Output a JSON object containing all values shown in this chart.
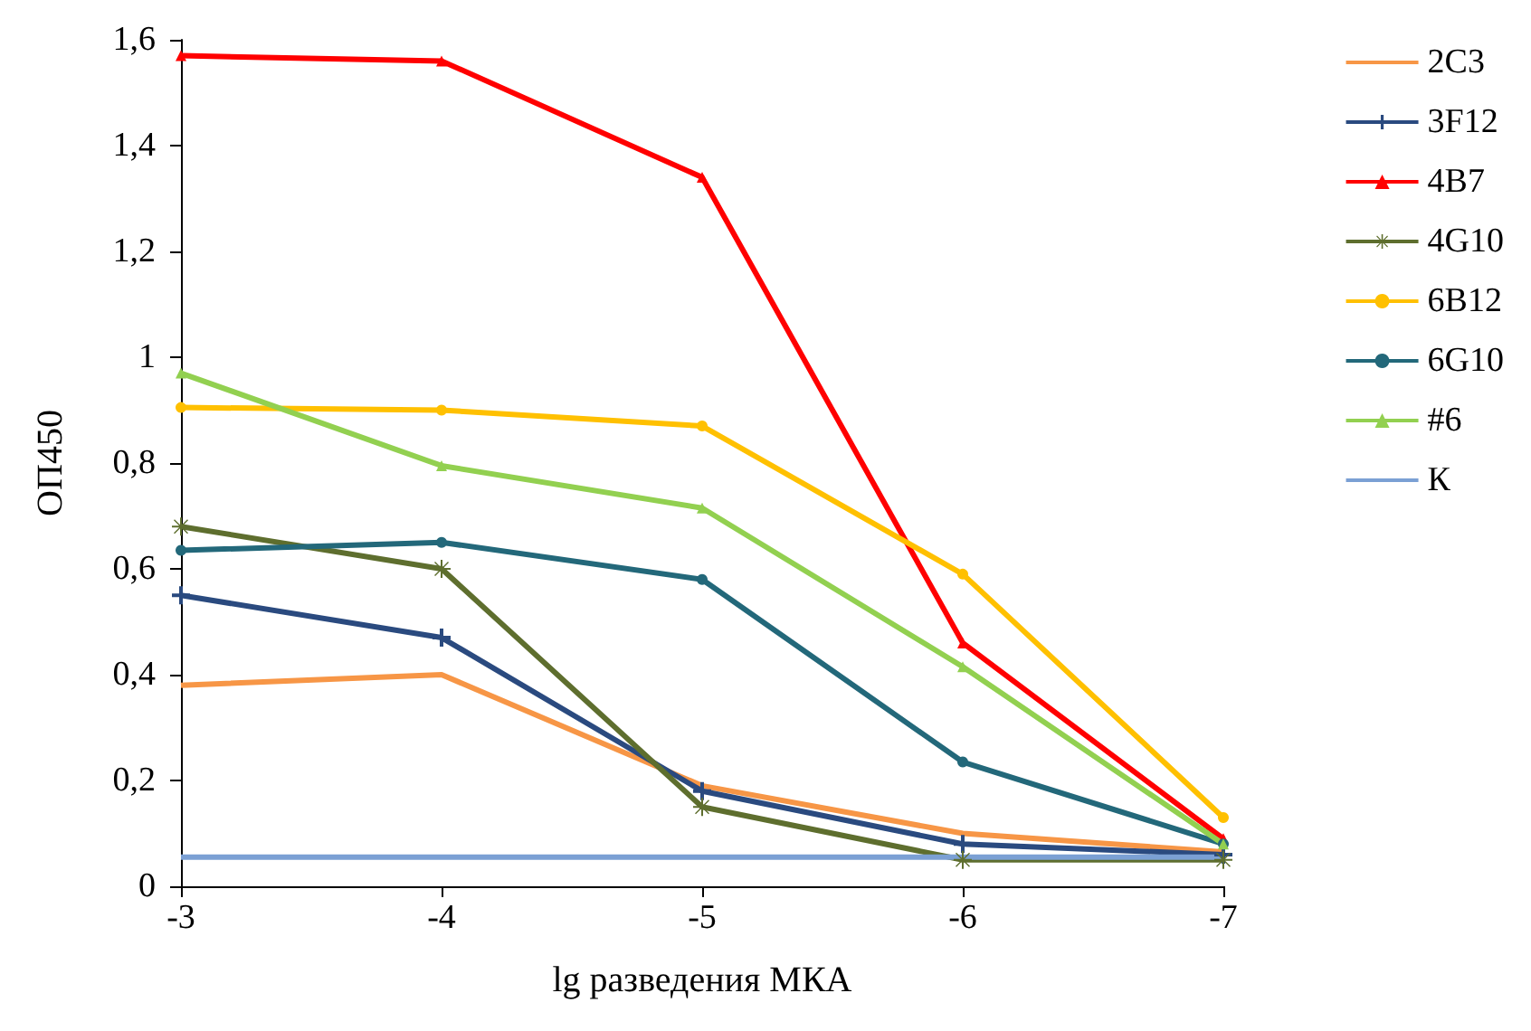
{
  "chart_data": {
    "type": "line",
    "xlabel": "lg разведения МКА",
    "ylabel": "ОП450",
    "x": [
      -3,
      -4,
      -5,
      -6,
      -7
    ],
    "xlim": [
      -3,
      -7
    ],
    "xticks": [
      -3,
      -4,
      -5,
      -6,
      -7
    ],
    "ylim": [
      0,
      1.6
    ],
    "yticks": [
      0,
      {
        "value": 0.2,
        "label": "0,2"
      },
      {
        "value": 0.4,
        "label": "0,4"
      },
      {
        "value": 0.6,
        "label": "0,6"
      },
      {
        "value": 0.8,
        "label": "0,8"
      },
      1,
      {
        "value": 1.2,
        "label": "1,2"
      },
      {
        "value": 1.4,
        "label": "1,4"
      },
      {
        "value": 1.6,
        "label": "1,6"
      }
    ],
    "grid": false,
    "legend": "right",
    "series": [
      {
        "name": "2C3",
        "color": "#f79646",
        "marker": "none",
        "values": [
          0.38,
          0.4,
          0.19,
          0.1,
          0.065
        ]
      },
      {
        "name": "3F12",
        "color": "#2a4a7f",
        "marker": "cross",
        "values": [
          0.55,
          0.47,
          0.18,
          0.08,
          0.06
        ]
      },
      {
        "name": "4B7",
        "color": "#ff0000",
        "marker": "triangle",
        "values": [
          1.57,
          1.56,
          1.34,
          0.46,
          0.09
        ]
      },
      {
        "name": "4G10",
        "color": "#5e6e2e",
        "marker": "star",
        "values": [
          0.68,
          0.6,
          0.15,
          0.05,
          0.05
        ]
      },
      {
        "name": "6B12",
        "color": "#ffc000",
        "marker": "circle",
        "values": [
          0.905,
          0.9,
          0.87,
          0.59,
          0.13
        ]
      },
      {
        "name": "6G10",
        "color": "#23687a",
        "marker": "circle",
        "values": [
          0.635,
          0.65,
          0.58,
          0.235,
          0.08
        ]
      },
      {
        "name": "#6",
        "color": "#92d050",
        "marker": "triangle",
        "values": [
          0.97,
          0.795,
          0.715,
          0.415,
          0.08
        ]
      },
      {
        "name": "К",
        "color": "#7ba0d4",
        "marker": "none",
        "values": [
          0.055,
          0.055,
          0.055,
          0.055,
          0.055
        ]
      }
    ]
  }
}
